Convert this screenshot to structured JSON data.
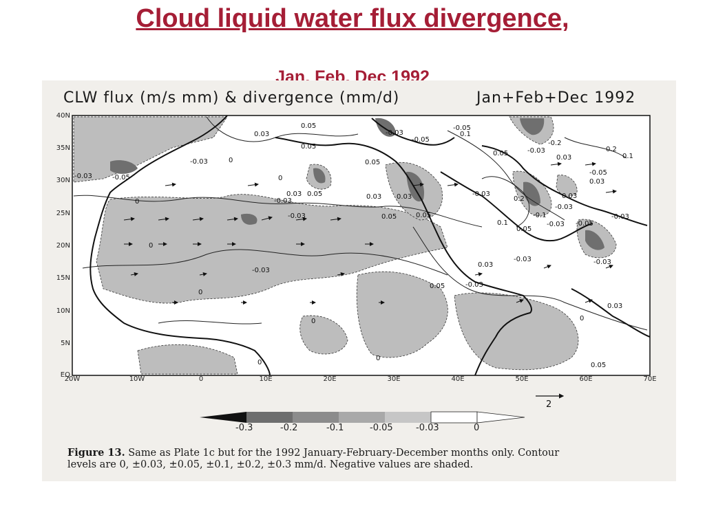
{
  "slide": {
    "title": "Cloud liquid water flux divergence,",
    "subtitle": "Jan, Feb, Dec 1992"
  },
  "figure": {
    "header_left": "CLW flux (m/s mm) & divergence (mm/d)",
    "header_right": "Jan+Feb+Dec  1992",
    "lat_labels": [
      "40N",
      "35N",
      "30N",
      "25N",
      "20N",
      "15N",
      "10N",
      "5N",
      "EQ"
    ],
    "lon_labels": [
      "20W",
      "10W",
      "0",
      "10E",
      "20E",
      "30E",
      "40E",
      "50E",
      "60E",
      "70E"
    ],
    "contour_labels": [
      "0",
      "-0.03",
      "0.03",
      "-0.05",
      "0.05",
      "-0.1",
      "0.1",
      "-0.2",
      "0.2"
    ],
    "reference_vector_label": "2",
    "colorbar_labels": [
      "-0.3",
      "-0.2",
      "-0.1",
      "-0.05",
      "-0.03",
      "0"
    ],
    "colorbar_shades": [
      "#111111",
      "#6e6e6e",
      "#8c8c8c",
      "#a9a9a9",
      "#c6c6c6",
      "#ffffff"
    ],
    "caption_bold": "Figure 13.",
    "caption_line1": "Same as Plate 1c but for the 1992 January-February-December months only.  Contour",
    "caption_line2": "levels are 0, ±0.03, ±0.05, ±0.1, ±0.2, ±0.3 mm/d.  Negative values are shaded."
  }
}
